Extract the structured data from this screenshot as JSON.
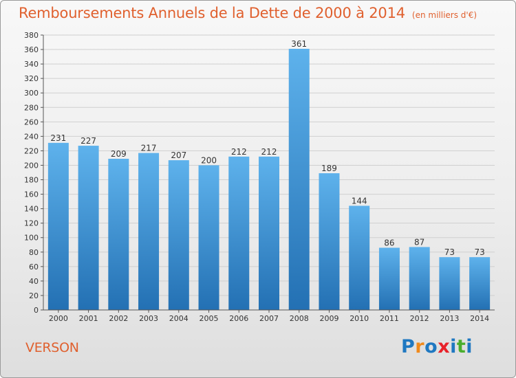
{
  "header": {
    "title": "Remboursements Annuels de la Dette de 2000 à 2014",
    "unit": "(en milliers d'€)"
  },
  "footer": {
    "commune": "VERSON",
    "logo_text": "Proxiti"
  },
  "colors": {
    "title": "#e0602e",
    "bar_top": "#5eb2ec",
    "bar_bottom": "#2370b3",
    "grid": "#cfcfcf",
    "logo_letters": [
      "#1f78c1",
      "#f08a1c",
      "#1f78c1",
      "#e8222a",
      "#1f78c1",
      "#4aae2e",
      "#1f78c1"
    ]
  },
  "chart_data": {
    "type": "bar",
    "title": "Remboursements Annuels de la Dette de 2000 à 2014",
    "categories": [
      "2000",
      "2001",
      "2002",
      "2003",
      "2004",
      "2005",
      "2006",
      "2007",
      "2008",
      "2009",
      "2010",
      "2011",
      "2012",
      "2013",
      "2014"
    ],
    "values": [
      231,
      227,
      209,
      217,
      207,
      200,
      212,
      212,
      361,
      189,
      144,
      86,
      87,
      73,
      73
    ],
    "ylim": [
      0,
      380
    ],
    "yticks": [
      0,
      20,
      40,
      60,
      80,
      100,
      120,
      140,
      160,
      180,
      200,
      220,
      240,
      260,
      280,
      300,
      320,
      340,
      360,
      380
    ],
    "grid": true,
    "data_labels": true
  }
}
